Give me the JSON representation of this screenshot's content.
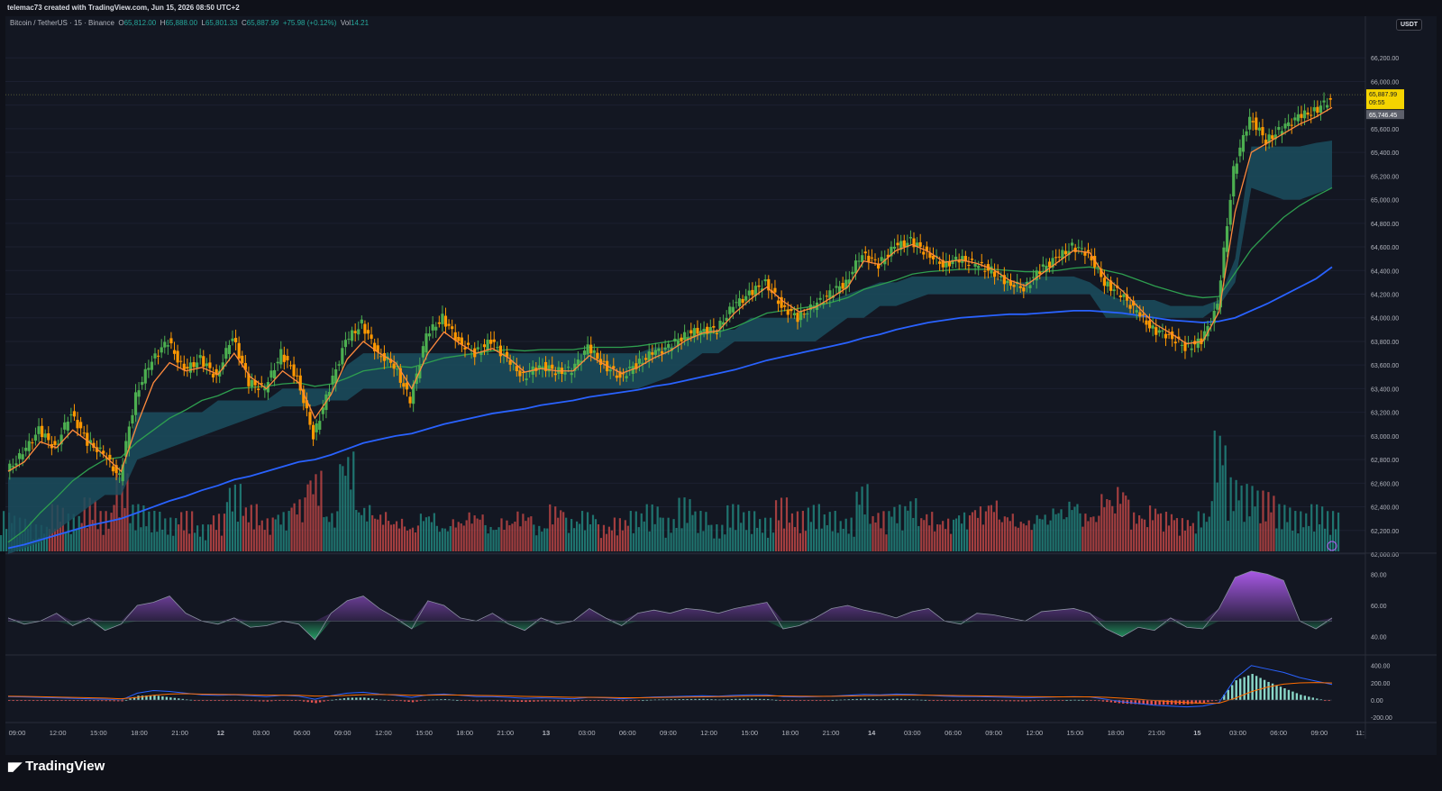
{
  "header": {
    "attribution": "telemac73 created with TradingView.com, Jun 15, 2026 08:50 UTC+2"
  },
  "legend": {
    "symbol": "Bitcoin / TetherUS · 15 · Binance",
    "o_label": "O",
    "o": "65,812.00",
    "h_label": "H",
    "h": "65,888.00",
    "l_label": "L",
    "l": "65,801.33",
    "c_label": "C",
    "c": "65,887.99",
    "change": "+75.98 (+0.12%)",
    "vol_label": "Vol",
    "vol": "14.21"
  },
  "currency_badge": "USDT",
  "price_labels": {
    "last_price": "65,887.99",
    "countdown": "09:55",
    "second_price": "65,746.45"
  },
  "footer": {
    "brand": "TradingView"
  },
  "colors": {
    "background": "#131722",
    "bull": "#26a69a",
    "bear": "#ef5350",
    "candle_up": "#4caf50",
    "candle_down": "#ff9800",
    "ema_orange": "#ff8a3d",
    "ema_green": "#2e9e4f",
    "ema_blue": "#2962ff",
    "cloud": "#1b4e5e",
    "rsi_purple": "#b05cf0",
    "rsi_green": "#27a96a",
    "last_price_label": "#f5d400"
  },
  "chart_data": [
    {
      "type": "candlestick",
      "title": "Bitcoin / TetherUS · 15 · Binance",
      "ylim": [
        62000,
        66400
      ],
      "y_ticks": [
        "66,200.00",
        "66,000.00",
        "65,800.00",
        "65,600.00",
        "65,400.00",
        "65,200.00",
        "65,000.00",
        "64,800.00",
        "64,600.00",
        "64,400.00",
        "64,200.00",
        "64,000.00",
        "63,800.00",
        "63,600.00",
        "63,400.00",
        "63,200.00",
        "63,000.00",
        "62,800.00",
        "62,600.00",
        "62,400.00",
        "62,200.00",
        "62,000.00"
      ],
      "x_ticks": [
        "09:00",
        "12:00",
        "15:00",
        "18:00",
        "21:00",
        "12",
        "03:00",
        "06:00",
        "09:00",
        "12:00",
        "15:00",
        "18:00",
        "21:00",
        "13",
        "03:00",
        "06:00",
        "09:00",
        "12:00",
        "15:00",
        "18:00",
        "21:00",
        "14",
        "03:00",
        "06:00",
        "09:00",
        "12:00",
        "15:00",
        "18:00",
        "21:00",
        "15",
        "03:00",
        "06:00",
        "09:00",
        "11:"
      ],
      "price_path": [
        62700,
        62850,
        63050,
        62900,
        63200,
        62950,
        62850,
        62650,
        63350,
        63650,
        63800,
        63550,
        63650,
        63500,
        63850,
        63450,
        63400,
        63700,
        63500,
        63000,
        63400,
        63800,
        63950,
        63700,
        63600,
        63300,
        63850,
        64000,
        63800,
        63700,
        63800,
        63650,
        63500,
        63600,
        63550,
        63550,
        63750,
        63600,
        63500,
        63600,
        63700,
        63750,
        63850,
        63900,
        63900,
        64100,
        64200,
        64300,
        64100,
        64000,
        64100,
        64200,
        64300,
        64550,
        64450,
        64600,
        64650,
        64550,
        64450,
        64500,
        64450,
        64400,
        64300,
        64250,
        64400,
        64500,
        64600,
        64550,
        64300,
        64200,
        64050,
        63900,
        63850,
        63750,
        63800,
        64100,
        65250,
        65700,
        65500,
        65600,
        65700,
        65750,
        65850
      ],
      "ema_fast": [
        62700,
        62780,
        62950,
        62900,
        63050,
        62950,
        62830,
        62700,
        63100,
        63450,
        63620,
        63550,
        63580,
        63520,
        63700,
        63500,
        63400,
        63550,
        63450,
        63150,
        63350,
        63650,
        63800,
        63700,
        63620,
        63400,
        63700,
        63880,
        63780,
        63700,
        63740,
        63660,
        63540,
        63570,
        63550,
        63550,
        63680,
        63600,
        63530,
        63580,
        63660,
        63720,
        63810,
        63870,
        63890,
        64040,
        64160,
        64260,
        64140,
        64050,
        64090,
        64170,
        64260,
        64480,
        64450,
        64570,
        64620,
        64560,
        64470,
        64490,
        64460,
        64410,
        64320,
        64270,
        64370,
        64470,
        64570,
        64550,
        64340,
        64230,
        64090,
        63950,
        63870,
        63780,
        63800,
        64050,
        64900,
        65400,
        65480,
        65560,
        65640,
        65700,
        65780
      ],
      "ema_mid": [
        62100,
        62200,
        62350,
        62480,
        62620,
        62720,
        62800,
        62820,
        62950,
        63050,
        63150,
        63220,
        63300,
        63340,
        63400,
        63410,
        63420,
        63440,
        63450,
        63420,
        63440,
        63490,
        63550,
        63570,
        63590,
        63580,
        63620,
        63660,
        63680,
        63700,
        63720,
        63730,
        63720,
        63730,
        63730,
        63730,
        63750,
        63750,
        63750,
        63760,
        63780,
        63800,
        63830,
        63860,
        63880,
        63920,
        63980,
        64040,
        64060,
        64080,
        64100,
        64130,
        64170,
        64240,
        64280,
        64320,
        64370,
        64390,
        64400,
        64410,
        64410,
        64410,
        64400,
        64390,
        64390,
        64400,
        64420,
        64430,
        64400,
        64370,
        64320,
        64270,
        64230,
        64190,
        64170,
        64180,
        64380,
        64580,
        64720,
        64850,
        64950,
        65030,
        65100
      ],
      "ema_slow": [
        62050,
        62080,
        62120,
        62160,
        62200,
        62240,
        62270,
        62300,
        62350,
        62400,
        62450,
        62490,
        62540,
        62580,
        62630,
        62660,
        62700,
        62740,
        62780,
        62800,
        62840,
        62890,
        62940,
        62970,
        63000,
        63020,
        63060,
        63100,
        63130,
        63160,
        63190,
        63210,
        63230,
        63260,
        63280,
        63300,
        63330,
        63350,
        63370,
        63390,
        63420,
        63440,
        63470,
        63500,
        63530,
        63560,
        63600,
        63640,
        63670,
        63700,
        63730,
        63760,
        63790,
        63830,
        63860,
        63900,
        63930,
        63960,
        63980,
        64000,
        64010,
        64020,
        64030,
        64030,
        64040,
        64050,
        64060,
        64060,
        64050,
        64040,
        64020,
        64000,
        63980,
        63970,
        63960,
        63970,
        64000,
        64060,
        64120,
        64190,
        64260,
        64330,
        64430
      ],
      "cloud_top": [
        62650,
        62650,
        62650,
        62650,
        62650,
        62650,
        62650,
        62650,
        63200,
        63200,
        63200,
        63200,
        63200,
        63300,
        63300,
        63300,
        63300,
        63400,
        63400,
        63400,
        63400,
        63600,
        63700,
        63700,
        63700,
        63700,
        63700,
        63700,
        63700,
        63700,
        63700,
        63700,
        63700,
        63700,
        63700,
        63700,
        63700,
        63700,
        63700,
        63700,
        63750,
        63750,
        63800,
        63900,
        63900,
        63900,
        64000,
        64000,
        64000,
        64000,
        64100,
        64150,
        64200,
        64250,
        64300,
        64300,
        64350,
        64350,
        64350,
        64350,
        64350,
        64350,
        64300,
        64300,
        64350,
        64350,
        64350,
        64300,
        64200,
        64150,
        64150,
        64150,
        64100,
        64100,
        64100,
        64150,
        64500,
        65450,
        65450,
        65450,
        65450,
        65480,
        65500
      ],
      "cloud_bottom": [
        62000,
        62050,
        62100,
        62200,
        62300,
        62400,
        62500,
        62500,
        62800,
        62850,
        62900,
        62950,
        63000,
        63050,
        63100,
        63150,
        63200,
        63250,
        63250,
        63250,
        63300,
        63300,
        63400,
        63400,
        63400,
        63400,
        63400,
        63400,
        63400,
        63400,
        63400,
        63400,
        63400,
        63400,
        63400,
        63400,
        63400,
        63400,
        63400,
        63400,
        63450,
        63500,
        63600,
        63700,
        63700,
        63800,
        63800,
        63800,
        63800,
        63800,
        63800,
        63900,
        64000,
        64000,
        64100,
        64100,
        64150,
        64200,
        64200,
        64200,
        64200,
        64200,
        64200,
        64200,
        64200,
        64200,
        64200,
        64200,
        64000,
        64000,
        64000,
        64000,
        64000,
        64000,
        64000,
        64100,
        64300,
        65100,
        65050,
        65000,
        65000,
        65050,
        65100
      ],
      "volume": [
        0.3,
        0.25,
        0.2,
        0.35,
        0.28,
        0.4,
        0.3,
        0.6,
        0.35,
        0.3,
        0.25,
        0.3,
        0.2,
        0.28,
        0.5,
        0.35,
        0.25,
        0.3,
        0.4,
        0.6,
        0.3,
        0.75,
        0.35,
        0.3,
        0.25,
        0.2,
        0.3,
        0.2,
        0.25,
        0.3,
        0.2,
        0.25,
        0.3,
        0.2,
        0.35,
        0.25,
        0.3,
        0.2,
        0.25,
        0.3,
        0.35,
        0.25,
        0.4,
        0.3,
        0.2,
        0.35,
        0.3,
        0.25,
        0.4,
        0.3,
        0.35,
        0.3,
        0.25,
        0.5,
        0.3,
        0.35,
        0.4,
        0.3,
        0.25,
        0.3,
        0.35,
        0.4,
        0.3,
        0.25,
        0.3,
        0.35,
        0.4,
        0.3,
        0.45,
        0.5,
        0.3,
        0.35,
        0.3,
        0.25,
        0.3,
        0.9,
        0.55,
        0.5,
        0.45,
        0.35,
        0.3,
        0.35,
        0.3
      ]
    },
    {
      "type": "area",
      "title": "RSI",
      "ylim": [
        30,
        90
      ],
      "y_ticks": [
        "80.00",
        "60.00",
        "40.00"
      ],
      "baseline": 50,
      "values": [
        52,
        48,
        50,
        55,
        47,
        52,
        44,
        48,
        60,
        62,
        66,
        55,
        50,
        48,
        52,
        46,
        47,
        50,
        48,
        38,
        55,
        63,
        66,
        58,
        52,
        45,
        63,
        60,
        52,
        50,
        55,
        48,
        44,
        52,
        48,
        50,
        58,
        52,
        47,
        55,
        57,
        55,
        58,
        57,
        55,
        58,
        60,
        62,
        45,
        47,
        52,
        58,
        60,
        57,
        55,
        52,
        56,
        58,
        50,
        48,
        55,
        54,
        52,
        50,
        56,
        57,
        58,
        55,
        45,
        40,
        46,
        44,
        52,
        46,
        45,
        58,
        78,
        82,
        80,
        76,
        50,
        45,
        52
      ]
    },
    {
      "type": "line",
      "title": "MACD",
      "ylim": [
        -240,
        460
      ],
      "y_ticks": [
        "400.00",
        "200.00",
        "0.00",
        "-200.00"
      ],
      "baseline": 0,
      "macd": [
        40,
        35,
        30,
        25,
        20,
        15,
        10,
        0,
        80,
        110,
        100,
        80,
        60,
        55,
        60,
        50,
        40,
        55,
        45,
        10,
        50,
        80,
        90,
        70,
        55,
        30,
        60,
        70,
        55,
        40,
        40,
        30,
        20,
        25,
        20,
        15,
        30,
        25,
        15,
        25,
        35,
        40,
        45,
        50,
        45,
        55,
        60,
        60,
        40,
        35,
        40,
        45,
        55,
        65,
        60,
        70,
        65,
        55,
        45,
        40,
        40,
        35,
        30,
        25,
        30,
        35,
        40,
        35,
        10,
        -20,
        -40,
        -60,
        -70,
        -80,
        -70,
        -30,
        250,
        400,
        360,
        320,
        260,
        220,
        180
      ],
      "signal": [
        45,
        42,
        38,
        34,
        30,
        26,
        22,
        15,
        30,
        55,
        70,
        73,
        68,
        65,
        64,
        61,
        57,
        57,
        55,
        46,
        47,
        54,
        62,
        64,
        62,
        55,
        56,
        59,
        58,
        54,
        51,
        47,
        42,
        39,
        35,
        31,
        31,
        30,
        27,
        27,
        29,
        31,
        34,
        37,
        39,
        42,
        46,
        49,
        47,
        45,
        44,
        44,
        46,
        50,
        52,
        55,
        57,
        56,
        54,
        51,
        49,
        46,
        43,
        40,
        38,
        37,
        37,
        37,
        31,
        21,
        9,
        -5,
        -18,
        -30,
        -38,
        -36,
        21,
        97,
        150,
        184,
        199,
        203,
        198
      ]
    }
  ]
}
